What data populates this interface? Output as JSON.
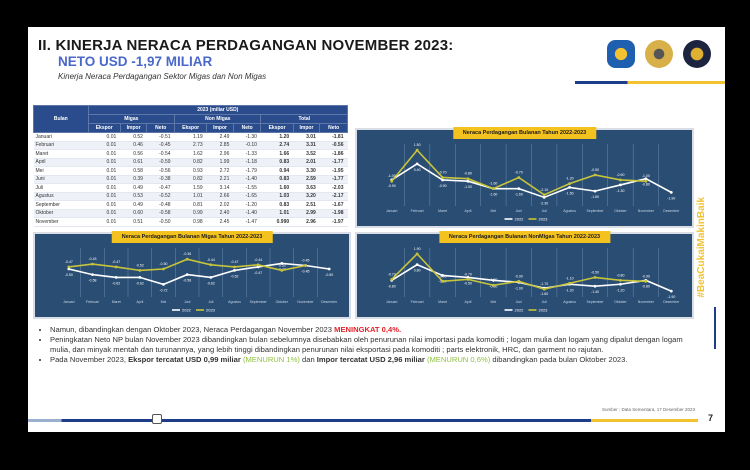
{
  "header": {
    "title": "II. KINERJA NERACA PERDAGANGAN NOVEMBER 2023:",
    "subtitle": "NETO USD -1,97 MILIAR",
    "caption": "Kinerja Neraca Perdagangan Sektor Migas dan Non Migas"
  },
  "table": {
    "year_header": "2023 (miliar USD)",
    "month_header": "Bulan",
    "groups": [
      "Migas",
      "Non Migas",
      "Total"
    ],
    "cols": [
      "Ekspor",
      "Impor",
      "Neto"
    ],
    "rows": [
      [
        "Januari",
        "0.01",
        "0.52",
        "-0.51",
        "1.19",
        "2.49",
        "-1.30",
        "1.20",
        "3.01",
        "-1.81"
      ],
      [
        "Februari",
        "0.01",
        "0.46",
        "-0.45",
        "2.73",
        "2.85",
        "-0.10",
        "2.74",
        "3.31",
        "-0.56"
      ],
      [
        "Maret",
        "0.01",
        "0.56",
        "-0.54",
        "1.62",
        "2.96",
        "-1.33",
        "1.66",
        "3.52",
        "-1.86"
      ],
      [
        "April",
        "0.01",
        "0.61",
        "-0.59",
        "0.82",
        "1.99",
        "-1.18",
        "0.83",
        "2.01",
        "-1.77"
      ],
      [
        "Mei",
        "0.01",
        "0.58",
        "-0.56",
        "0.93",
        "2.72",
        "-1.79",
        "0.94",
        "3.30",
        "-1.95"
      ],
      [
        "Juni",
        "0.01",
        "0.39",
        "-0.38",
        "0.82",
        "2.21",
        "-1.40",
        "0.83",
        "2.59",
        "-1.77"
      ],
      [
        "Juli",
        "0.01",
        "0.49",
        "-0.47",
        "1.59",
        "3.14",
        "-1.55",
        "1.60",
        "3.63",
        "-2.03"
      ],
      [
        "Agustus",
        "0.01",
        "0.53",
        "-0.52",
        "1.01",
        "2.66",
        "-1.65",
        "1.03",
        "3.20",
        "-2.17"
      ],
      [
        "September",
        "0.01",
        "0.49",
        "-0.48",
        "0.81",
        "2.02",
        "-1.20",
        "0.83",
        "2.51",
        "-1.67"
      ],
      [
        "Oktober",
        "0.01",
        "0.60",
        "-0.58",
        "0.99",
        "2.40",
        "-1.40",
        "1.01",
        "2.99",
        "-1.98"
      ],
      [
        "November",
        "0.01",
        "0.51",
        "-0.50",
        "0.98",
        "2.45",
        "-1.47",
        "0.990",
        "2.96",
        "-1.97"
      ]
    ]
  },
  "logos": [
    "kemenkeu-logo",
    "bea-cukai-logo",
    "customs-mascot-logo"
  ],
  "chart_data": [
    {
      "type": "line",
      "title": "Neraca Perdagangan Bulanan Tahun 2022-2023",
      "ylim": [
        -3,
        2
      ],
      "categories": [
        "Januari",
        "Februari",
        "Maret",
        "April",
        "Mei",
        "Juni",
        "Juli",
        "Agustus",
        "September",
        "Oktober",
        "November",
        "Desember"
      ],
      "series": [
        {
          "name": "2022",
          "color": "#ffffff",
          "values": [
            -0.9,
            0.4,
            -0.9,
            -1.0,
            -1.6,
            -1.6,
            -2.3,
            -1.5,
            -1.8,
            -1.3,
            -0.8,
            -1.9
          ]
        },
        {
          "name": "2023",
          "color": "#c7c43a",
          "values": [
            -1.0,
            1.5,
            -0.7,
            -0.8,
            -1.6,
            -0.7,
            -2.1,
            -1.2,
            -0.5,
            -0.9,
            -1.0,
            null
          ]
        }
      ]
    },
    {
      "type": "line",
      "title": "Neraca Perdagangan Bulanan Migas Tahun 2022-2023",
      "ylim": [
        -0.9,
        -0.2
      ],
      "categories": [
        "Januari",
        "Februari",
        "Maret",
        "April",
        "Mei",
        "Juni",
        "Juli",
        "Agustus",
        "September",
        "Oktober",
        "November",
        "Desember"
      ],
      "series": [
        {
          "name": "2022",
          "color": "#ffffff",
          "values": [
            -0.5,
            -0.58,
            -0.62,
            -0.62,
            -0.72,
            -0.58,
            -0.62,
            -0.52,
            -0.47,
            -0.42,
            -0.45,
            -0.5
          ]
        },
        {
          "name": "2023",
          "color": "#c7c43a",
          "values": [
            -0.47,
            -0.43,
            -0.47,
            -0.52,
            -0.5,
            -0.36,
            -0.44,
            -0.47,
            -0.44,
            -0.52,
            -0.45,
            null
          ]
        }
      ]
    },
    {
      "type": "line",
      "title": "Neraca Perdagangan Bulanan NonMigas Tahun 2022-2023",
      "ylim": [
        -2.5,
        2.5
      ],
      "categories": [
        "Januari",
        "Februari",
        "Maret",
        "April",
        "Mei",
        "Juni",
        "Juli",
        "Agustus",
        "September",
        "Oktober",
        "November",
        "Desember"
      ],
      "series": [
        {
          "name": "2022",
          "color": "#ffffff",
          "values": [
            -0.8,
            0.8,
            -0.3,
            -0.5,
            -0.8,
            -1.0,
            -1.6,
            -1.2,
            -1.4,
            -1.2,
            -0.8,
            -1.9
          ]
        },
        {
          "name": "2023",
          "color": "#c7c43a",
          "values": [
            -0.7,
            1.9,
            -0.9,
            -0.7,
            -1.3,
            -0.9,
            -1.7,
            -1.1,
            -0.5,
            -0.8,
            -0.9,
            null
          ]
        }
      ]
    }
  ],
  "bullets": {
    "b1_text": "Namun, dibandingkan dengan Oktober 2023, Neraca Perdagangan November 2023 ",
    "b1_hl": "MENINGKAT 0,4%.",
    "b2_text": "Peningkatan Neto NP bulan November 2023 dibandingkan bulan sebelumnya disebabkan oleh penurunan nilai importasi pada komoditi ; logam mulia dan logam yang dipalut dengan logam mulia, dan minyak mentah dan turunannya, yang lebih tinggi dibandingkan penurunan nilai eksportasi pada komoditi ; parts elektronik, HRC, dan garment no rajutan.",
    "b3_a": "Pada November 2023, ",
    "b3_b": "Ekspor tercatat USD 0,99 miliar",
    "b3_c": "(MENURUN 1%)",
    "b3_d": " dan ",
    "b3_e": "Impor tercatat USD 2,96 miliar",
    "b3_f": "(MENURUN 0,6%)",
    "b3_g": " dibandingkan pada bulan Oktober 2023."
  },
  "hashtag": "#BeaCukaiMakinBaik",
  "source": "Sumber : Data Sementara, 17 Desember 2023",
  "page_number": "7"
}
